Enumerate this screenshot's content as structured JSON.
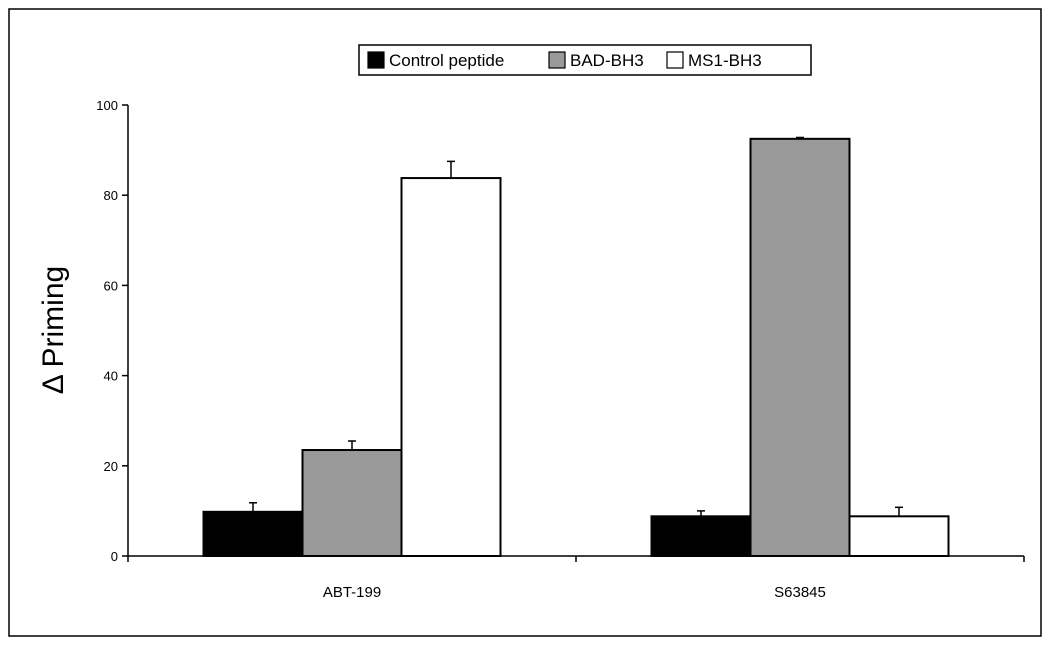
{
  "chart_data": {
    "type": "bar",
    "title": "",
    "xlabel": "",
    "ylabel": "Δ Priming",
    "ylim": [
      0,
      100
    ],
    "yticks": [
      0,
      20,
      40,
      60,
      80,
      100
    ],
    "grid": false,
    "legend_position": "top-center",
    "categories": [
      "ABT-199",
      "S63845"
    ],
    "series": [
      {
        "name": "Control peptide",
        "color": "#000000",
        "values": [
          9.8,
          8.8
        ],
        "errors": [
          2.0,
          1.2
        ]
      },
      {
        "name": "BAD-BH3",
        "color": "#999999",
        "values": [
          23.5,
          92.5
        ],
        "errors": [
          2.0,
          0.3
        ]
      },
      {
        "name": "MS1-BH3",
        "color": "#ffffff",
        "values": [
          83.8,
          8.8
        ],
        "errors": [
          3.7,
          2.0
        ]
      }
    ]
  }
}
